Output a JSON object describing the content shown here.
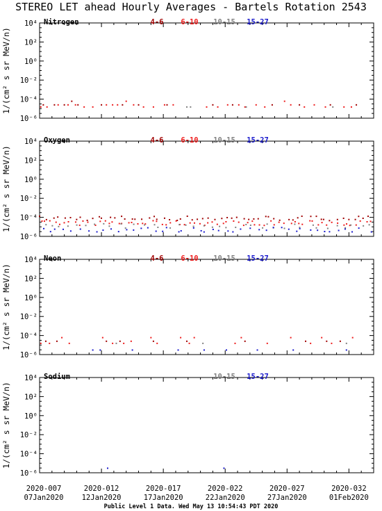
{
  "title": "STEREO LET ahead Hourly Averages - Bartels Rotation 2543",
  "footer": "Public Level 1 Data. Wed May 13 10:54:43 PDT 2020",
  "ylabel": "1/(cm² s sr MeV/n)",
  "colors": {
    "e4_6": "#a00000",
    "e6_10": "#ee1c1c",
    "e10_15": "#808080",
    "e15_27": "#1a1acc"
  },
  "energy_labels": {
    "e4_6": "4-6",
    "e6_10": "6-10",
    "e10_15": "10-15",
    "e15_27": "15-27"
  },
  "x_ticks": [
    {
      "top": "2020-007",
      "bottom": "07Jan2020",
      "day": 0
    },
    {
      "top": "2020-012",
      "bottom": "12Jan2020",
      "day": 5
    },
    {
      "top": "2020-017",
      "bottom": "17Jan2020",
      "day": 10
    },
    {
      "top": "2020-022",
      "bottom": "22Jan2020",
      "day": 15
    },
    {
      "top": "2020-027",
      "bottom": "27Jan2020",
      "day": 20
    },
    {
      "top": "2020-032",
      "bottom": "01Feb2020",
      "day": 25
    }
  ],
  "chart_data": [
    {
      "type": "scatter",
      "title": "Nitrogen",
      "ylim_exponent": [
        -6,
        4
      ],
      "y_ticks": [
        "10⁴",
        "10²",
        "10⁰",
        "10⁻²",
        "10⁻⁴",
        "10⁻⁶"
      ],
      "series": [
        {
          "name": "4-6",
          "color": "#a00000",
          "points": [
            [
              0.3,
              2.5e-05
            ],
            [
              1.2,
              2.5e-05
            ],
            [
              2.0,
              2.5e-05
            ],
            [
              2.6,
              6e-05
            ],
            [
              3.1,
              2.5e-05
            ],
            [
              5.0,
              2.5e-05
            ],
            [
              6.7,
              2.5e-05
            ],
            [
              8.0,
              2.5e-05
            ],
            [
              10.3,
              2.5e-05
            ],
            [
              14.0,
              2.5e-05
            ],
            [
              15.6,
              2.5e-05
            ],
            [
              18.8,
              2.5e-05
            ],
            [
              21.0,
              2.5e-05
            ],
            [
              23.5,
              2.5e-05
            ],
            [
              25.6,
              2.5e-05
            ]
          ]
        },
        {
          "name": "6-10",
          "color": "#ee1c1c",
          "points": [
            [
              0.1,
              1.5e-05
            ],
            [
              0.6,
              1.5e-05
            ],
            [
              1.5,
              2.5e-05
            ],
            [
              2.3,
              2.5e-05
            ],
            [
              2.9,
              2.5e-05
            ],
            [
              3.6,
              1.5e-05
            ],
            [
              4.3,
              1.5e-05
            ],
            [
              5.4,
              2.5e-05
            ],
            [
              5.9,
              2.5e-05
            ],
            [
              6.3,
              2.5e-05
            ],
            [
              7.0,
              6e-05
            ],
            [
              7.6,
              2.5e-05
            ],
            [
              8.4,
              1.5e-05
            ],
            [
              9.2,
              1.5e-05
            ],
            [
              10.1,
              2.5e-05
            ],
            [
              10.8,
              2.5e-05
            ],
            [
              13.5,
              1.5e-05
            ],
            [
              14.4,
              1.5e-05
            ],
            [
              15.2,
              2.5e-05
            ],
            [
              16.1,
              2.5e-05
            ],
            [
              16.6,
              1.5e-05
            ],
            [
              17.5,
              2.5e-05
            ],
            [
              18.2,
              1.5e-05
            ],
            [
              19.8,
              6e-05
            ],
            [
              20.3,
              2.5e-05
            ],
            [
              21.4,
              1.5e-05
            ],
            [
              22.2,
              2.5e-05
            ],
            [
              23.1,
              1.5e-05
            ],
            [
              24.6,
              1.5e-05
            ],
            [
              25.2,
              1.5e-05
            ]
          ]
        },
        {
          "name": "10-15",
          "color": "#808080",
          "points": [
            [
              11.9,
              1.5e-05
            ],
            [
              12.2,
              1.5e-05
            ],
            [
              16.7,
              1.5e-05
            ],
            [
              23.7,
              1.5e-05
            ]
          ]
        }
      ]
    },
    {
      "type": "scatter",
      "title": "Oxygen",
      "ylim_exponent": [
        -6,
        4
      ],
      "y_ticks": [
        "10⁴",
        "10²",
        "10⁰",
        "10⁻²",
        "10⁻⁴",
        "10⁻⁶"
      ],
      "series": [
        {
          "name": "4-6",
          "color": "#a00000",
          "points": "band:8e-5:60"
        },
        {
          "name": "6-10",
          "color": "#ee1c1c",
          "points": "band:2.5e-5:70"
        },
        {
          "name": "10-15",
          "color": "#808080",
          "points": "band:1.2e-5:40"
        },
        {
          "name": "15-27",
          "color": "#1a1acc",
          "points": "band:5e-6:45"
        }
      ]
    },
    {
      "type": "scatter",
      "title": "Neon",
      "ylim_exponent": [
        -6,
        4
      ],
      "y_ticks": [
        "10⁴",
        "10²",
        "10⁰",
        "10⁻²",
        "10⁻⁴",
        "10⁻⁶"
      ],
      "series": [
        {
          "name": "4-6",
          "color": "#a00000",
          "points": [
            [
              0.5,
              2.5e-05
            ],
            [
              1.4,
              2.5e-05
            ],
            [
              5.4,
              2.5e-05
            ],
            [
              6.5,
              2.5e-05
            ],
            [
              9.2,
              2.5e-05
            ],
            [
              11.9,
              2.5e-05
            ],
            [
              16.6,
              2.5e-05
            ],
            [
              21.5,
              2.5e-05
            ],
            [
              23.2,
              2.5e-05
            ],
            [
              24.3,
              2.5e-05
            ]
          ]
        },
        {
          "name": "6-10",
          "color": "#ee1c1c",
          "points": [
            [
              0.1,
              1.5e-05
            ],
            [
              0.8,
              1.5e-05
            ],
            [
              1.8,
              6e-05
            ],
            [
              2.4,
              1.5e-05
            ],
            [
              5.1,
              6e-05
            ],
            [
              5.9,
              1.5e-05
            ],
            [
              6.8,
              1.5e-05
            ],
            [
              7.4,
              2.5e-05
            ],
            [
              9.0,
              6e-05
            ],
            [
              9.5,
              1.5e-05
            ],
            [
              11.4,
              6e-05
            ],
            [
              12.1,
              1.5e-05
            ],
            [
              12.5,
              6e-05
            ],
            [
              15.8,
              1.5e-05
            ],
            [
              16.3,
              6e-05
            ],
            [
              18.4,
              1.5e-05
            ],
            [
              20.3,
              6e-05
            ],
            [
              21.9,
              1.5e-05
            ],
            [
              22.8,
              6e-05
            ],
            [
              23.6,
              1.5e-05
            ],
            [
              25.3,
              6e-05
            ]
          ]
        },
        {
          "name": "10-15",
          "color": "#808080",
          "points": [
            [
              6.2,
              1.5e-05
            ],
            [
              13.2,
              1.5e-05
            ],
            [
              24.8,
              1.5e-05
            ]
          ]
        },
        {
          "name": "15-27",
          "color": "#1a1acc",
          "points": [
            [
              4.3,
              3e-06
            ],
            [
              4.9,
              3e-06
            ],
            [
              7.5,
              3e-06
            ],
            [
              11.2,
              3e-06
            ],
            [
              13.3,
              3e-06
            ],
            [
              15.1,
              3e-06
            ],
            [
              17.6,
              3e-06
            ],
            [
              20.5,
              3e-06
            ],
            [
              24.8,
              3e-06
            ]
          ]
        }
      ]
    },
    {
      "type": "scatter",
      "title": "Sodium",
      "ylim_exponent": [
        -6,
        4
      ],
      "y_ticks": [
        "10⁴",
        "10²",
        "10⁰",
        "10⁻²",
        "10⁻⁴",
        "10⁻⁶"
      ],
      "series": [
        {
          "name": "15-27",
          "color": "#1a1acc",
          "points": [
            [
              5.5,
              3e-06
            ],
            [
              14.9,
              3e-06
            ]
          ]
        }
      ]
    }
  ]
}
